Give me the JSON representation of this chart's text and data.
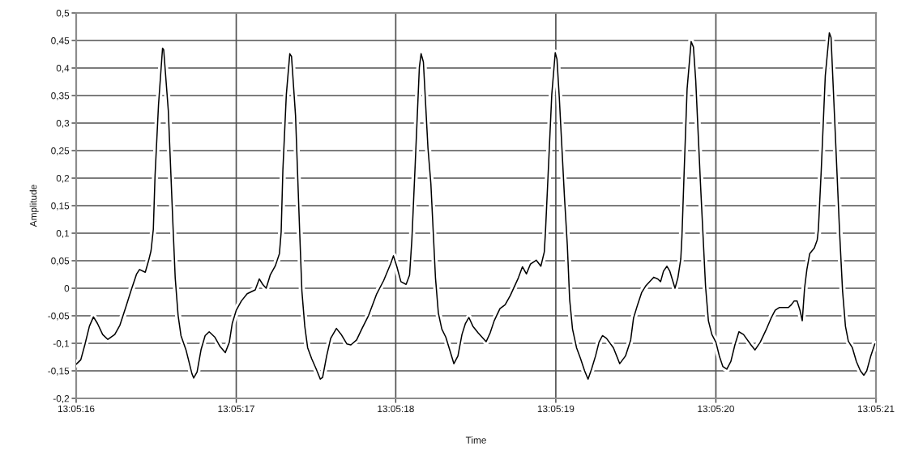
{
  "chart_data": {
    "type": "line",
    "xlabel": "Time",
    "ylabel": "Amplitude",
    "color": "#000000",
    "grid": true,
    "xlim": [
      13.087778,
      13.089167
    ],
    "xticks": [
      {
        "value": 13.087778,
        "label": "13:05:16"
      },
      {
        "value": 13.088056,
        "label": "13:05:17"
      },
      {
        "value": 13.088333,
        "label": "13:05:18"
      },
      {
        "value": 13.088611,
        "label": "13:05:19"
      },
      {
        "value": 13.088889,
        "label": "13:05:20"
      },
      {
        "value": 13.089167,
        "label": "13:05:21"
      }
    ],
    "ylim": [
      -0.2,
      0.5
    ],
    "yticks": [
      {
        "value": -0.2,
        "label": "-0,2"
      },
      {
        "value": -0.15,
        "label": "-0,15"
      },
      {
        "value": -0.1,
        "label": "-0,1"
      },
      {
        "value": -0.05,
        "label": "-0,05"
      },
      0,
      {
        "value": 0.05,
        "label": "0,05"
      },
      {
        "value": 0.1,
        "label": "0,1"
      },
      {
        "value": 0.15,
        "label": "0,15"
      },
      {
        "value": 0.2,
        "label": "0,2"
      },
      {
        "value": 0.25,
        "label": "0,25"
      },
      {
        "value": 0.3,
        "label": "0,3"
      },
      {
        "value": 0.35,
        "label": "0,35"
      },
      {
        "value": 0.4,
        "label": "0,4"
      },
      {
        "value": 0.45,
        "label": "0,45"
      },
      {
        "value": 0.5,
        "label": "0,5"
      }
    ],
    "x": [
      13.087778,
      13.087786,
      13.087793,
      13.087801,
      13.087808,
      13.087815,
      13.087824,
      13.087833,
      13.087845,
      13.087854,
      13.087864,
      13.087873,
      13.087883,
      13.087888,
      13.087898,
      13.087904,
      13.087908,
      13.087912,
      13.087915,
      13.087921,
      13.087928,
      13.08793,
      13.087938,
      13.087946,
      13.08795,
      13.087955,
      13.08796,
      13.087969,
      13.087979,
      13.087982,
      13.087988,
      13.087995,
      13.088002,
      13.088009,
      13.088019,
      13.088028,
      13.088037,
      13.088044,
      13.088049,
      13.088056,
      13.088065,
      13.088075,
      13.088089,
      13.088096,
      13.088102,
      13.088108,
      13.088115,
      13.088124,
      13.088131,
      13.088134,
      13.088137,
      13.088143,
      13.088149,
      13.088152,
      13.088159,
      13.088166,
      13.08817,
      13.088175,
      13.08818,
      13.088187,
      13.088195,
      13.088202,
      13.088206,
      13.088213,
      13.08822,
      13.08823,
      13.088239,
      13.088248,
      13.088255,
      13.088265,
      13.088274,
      13.088286,
      13.0883,
      13.088312,
      13.088324,
      13.088329,
      13.088335,
      13.088342,
      13.088351,
      13.088357,
      13.088361,
      13.088367,
      13.088374,
      13.088377,
      13.088381,
      13.088389,
      13.088394,
      13.088402,
      13.088407,
      13.088413,
      13.08842,
      13.088427,
      13.088434,
      13.088441,
      13.088448,
      13.088454,
      13.08846,
      13.088467,
      13.088476,
      13.08849,
      13.088497,
      13.088504,
      13.088514,
      13.088523,
      13.088532,
      13.088546,
      13.088553,
      13.08856,
      13.088567,
      13.088577,
      13.088585,
      13.088591,
      13.088593,
      13.088598,
      13.088604,
      13.08861,
      13.088613,
      13.088617,
      13.088626,
      13.088631,
      13.088635,
      13.08864,
      13.088647,
      13.088654,
      13.088661,
      13.088667,
      13.088673,
      13.08868,
      13.088686,
      13.088692,
      13.088699,
      13.088711,
      13.088722,
      13.088732,
      13.088741,
      13.088746,
      13.088753,
      13.08876,
      13.088767,
      13.088781,
      13.088788,
      13.088793,
      13.088798,
      13.088804,
      13.088809,
      13.088818,
      13.088823,
      13.088828,
      13.08883,
      13.088834,
      13.088839,
      13.088846,
      13.08885,
      13.088854,
      13.088862,
      13.088871,
      13.088876,
      13.088882,
      13.088889,
      13.088895,
      13.088901,
      13.088908,
      13.088915,
      13.088922,
      13.088929,
      13.088937,
      13.08895,
      13.088957,
      13.088966,
      13.088976,
      13.088985,
      13.088992,
      13.088999,
      13.089015,
      13.08902,
      13.089025,
      13.08903,
      13.089035,
      13.089039,
      13.089043,
      13.089047,
      13.089052,
      13.08906,
      13.089065,
      13.089067,
      13.089072,
      13.089079,
      13.089086,
      13.089089,
      13.089095,
      13.089104,
      13.089109,
      13.089114,
      13.089119,
      13.089126,
      13.089133,
      13.08914,
      13.089146,
      13.089151,
      13.089158,
      13.089165
    ],
    "values": [
      -0.138,
      -0.13,
      -0.103,
      -0.069,
      -0.052,
      -0.064,
      -0.084,
      -0.093,
      -0.084,
      -0.067,
      -0.035,
      -0.005,
      0.026,
      0.034,
      0.029,
      0.051,
      0.068,
      0.107,
      0.205,
      0.333,
      0.436,
      0.433,
      0.323,
      0.117,
      0.019,
      -0.049,
      -0.086,
      -0.113,
      -0.155,
      -0.163,
      -0.152,
      -0.111,
      -0.086,
      -0.079,
      -0.089,
      -0.106,
      -0.117,
      -0.098,
      -0.064,
      -0.04,
      -0.023,
      -0.01,
      -0.003,
      0.017,
      0.007,
      0.0,
      0.024,
      0.041,
      0.063,
      0.102,
      0.215,
      0.352,
      0.426,
      0.421,
      0.313,
      0.107,
      -0.005,
      -0.069,
      -0.108,
      -0.128,
      -0.147,
      -0.165,
      -0.162,
      -0.123,
      -0.091,
      -0.073,
      -0.085,
      -0.101,
      -0.103,
      -0.094,
      -0.074,
      -0.049,
      -0.01,
      0.014,
      0.044,
      0.059,
      0.039,
      0.012,
      0.007,
      0.024,
      0.088,
      0.23,
      0.401,
      0.426,
      0.411,
      0.254,
      0.19,
      0.019,
      -0.045,
      -0.074,
      -0.089,
      -0.113,
      -0.137,
      -0.123,
      -0.084,
      -0.064,
      -0.053,
      -0.069,
      -0.081,
      -0.097,
      -0.081,
      -0.059,
      -0.037,
      -0.03,
      -0.013,
      0.019,
      0.039,
      0.026,
      0.044,
      0.051,
      0.04,
      0.066,
      0.102,
      0.215,
      0.352,
      0.428,
      0.416,
      0.347,
      0.166,
      0.078,
      -0.02,
      -0.074,
      -0.108,
      -0.128,
      -0.15,
      -0.165,
      -0.147,
      -0.123,
      -0.098,
      -0.086,
      -0.091,
      -0.108,
      -0.137,
      -0.123,
      -0.094,
      -0.054,
      -0.03,
      -0.008,
      0.004,
      0.02,
      0.017,
      0.012,
      0.031,
      0.04,
      0.031,
      0.0,
      0.019,
      0.053,
      0.093,
      0.215,
      0.362,
      0.448,
      0.438,
      0.377,
      0.195,
      0.004,
      -0.059,
      -0.084,
      -0.098,
      -0.123,
      -0.142,
      -0.147,
      -0.133,
      -0.103,
      -0.079,
      -0.084,
      -0.103,
      -0.112,
      -0.098,
      -0.076,
      -0.054,
      -0.04,
      -0.035,
      -0.035,
      -0.03,
      -0.023,
      -0.023,
      -0.04,
      -0.059,
      0.0,
      0.034,
      0.063,
      0.073,
      0.088,
      0.107,
      0.215,
      0.386,
      0.464,
      0.455,
      0.313,
      0.098,
      -0.005,
      -0.069,
      -0.096,
      -0.108,
      -0.133,
      -0.15,
      -0.158,
      -0.15,
      -0.123,
      -0.101
    ]
  }
}
